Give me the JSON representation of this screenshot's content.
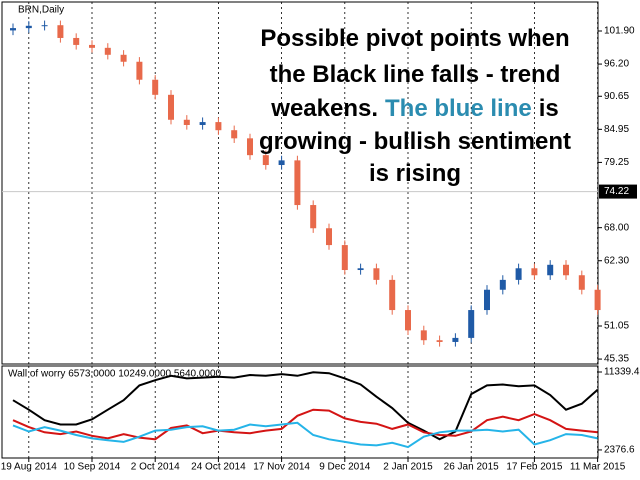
{
  "chart_data": [
    {
      "type": "candlestick",
      "title": "BRN,Daily",
      "categories": [
        null,
        "19 Aug 2014",
        null,
        null,
        null,
        "10 Sep 2014",
        null,
        null,
        null,
        "2 Oct 2014",
        null,
        null,
        null,
        "24 Oct 2014",
        null,
        null,
        null,
        "17 Nov 2014",
        null,
        null,
        null,
        "9 Dec 2014",
        null,
        null,
        null,
        "2 Jan 2015",
        null,
        null,
        null,
        "26 Jan 2015",
        null,
        null,
        null,
        "17 Feb 2015",
        null,
        null,
        null,
        "11 Mar 2015"
      ],
      "open": [
        102.0,
        102.4,
        102.8,
        102.9,
        100.7,
        99.5,
        99.0,
        97.8,
        96.6,
        93.5,
        90.9,
        86.6,
        85.7,
        86.2,
        84.8,
        83.4,
        80.5,
        78.8,
        79.6,
        71.9,
        67.9,
        65.0,
        60.7,
        61.0,
        59.0,
        53.8,
        50.3,
        48.6,
        48.3,
        49.0,
        53.8,
        57.3,
        59.0,
        61.0,
        59.8,
        61.6,
        59.8,
        57.3
      ],
      "high": [
        103.2,
        103.6,
        103.7,
        103.7,
        101.5,
        100.3,
        99.8,
        98.6,
        97.4,
        94.3,
        91.7,
        87.4,
        87.0,
        87.0,
        85.6,
        84.2,
        81.3,
        80.4,
        80.4,
        72.7,
        68.7,
        65.8,
        61.8,
        61.8,
        59.8,
        54.6,
        51.1,
        49.4,
        49.8,
        54.6,
        58.1,
        59.8,
        61.8,
        61.8,
        62.4,
        62.4,
        60.6,
        58.1
      ],
      "low": [
        101.2,
        101.6,
        102.0,
        99.9,
        98.7,
        98.2,
        97.0,
        95.8,
        92.7,
        90.1,
        85.8,
        84.9,
        84.9,
        84.0,
        82.6,
        79.7,
        78.0,
        78.0,
        71.1,
        67.1,
        64.2,
        59.9,
        59.9,
        58.2,
        53.0,
        49.5,
        47.8,
        47.5,
        47.5,
        48.2,
        53.0,
        56.5,
        58.2,
        59.0,
        59.0,
        59.0,
        56.5,
        53.0
      ],
      "close": [
        102.4,
        102.8,
        102.9,
        100.7,
        99.5,
        99.0,
        97.8,
        96.6,
        93.5,
        90.9,
        86.6,
        85.7,
        86.2,
        84.8,
        83.4,
        80.5,
        78.8,
        79.6,
        71.9,
        67.9,
        65.0,
        60.7,
        61.0,
        59.0,
        53.8,
        50.3,
        48.6,
        48.3,
        49.0,
        53.8,
        57.3,
        59.0,
        61.0,
        59.8,
        61.6,
        59.8,
        57.3,
        53.8
      ],
      "up_color": "#1f5aa6",
      "down_color": "#e8694a",
      "ylim": [
        44.5,
        106.9
      ],
      "yticks": [
        {
          "value": 101.9,
          "label": "101.90"
        },
        {
          "value": 96.2,
          "label": "96.20"
        },
        90.65,
        84.95,
        79.25,
        {
          "value": 68,
          "label": "68.00"
        },
        {
          "value": 62.3,
          "label": "62.30"
        },
        51.05,
        45.35
      ],
      "price_line": 74.22,
      "grid": true,
      "annotation": [
        [
          {
            "text": "Possible pivot points when",
            "color": "#000000"
          }
        ],
        [
          {
            "text": "the Black line falls - trend",
            "color": "#000000"
          }
        ],
        [
          {
            "text": "weakens.",
            "color": "#000000"
          },
          {
            "text": "The blue line",
            "color": "#2b8cb0"
          },
          {
            "text": "is",
            "color": "#000000"
          }
        ],
        [
          {
            "text": "growing - bullish sentiment",
            "color": "#000000"
          }
        ],
        [
          {
            "text": "is rising",
            "color": "#000000"
          }
        ]
      ]
    },
    {
      "type": "line",
      "title": "Wall of worry 6573.0000 10249.0000 5640.0000",
      "series": [
        {
          "color": "#000000",
          "values": [
            8100,
            7000,
            5800,
            5300,
            5300,
            5900,
            7000,
            8100,
            9800,
            10400,
            10900,
            10600,
            10700,
            10800,
            10700,
            11000,
            10900,
            11100,
            10900,
            11300,
            11200,
            10600,
            9900,
            8500,
            7200,
            5500,
            4600,
            3600,
            4500,
            8800,
            9800,
            9900,
            9700,
            9800,
            8700,
            7000,
            7700,
            9300
          ]
        },
        {
          "color": "#d41414",
          "values": [
            5800,
            5000,
            4400,
            4200,
            4500,
            4000,
            3700,
            4200,
            3800,
            3600,
            4900,
            5200,
            4300,
            4600,
            4400,
            4300,
            4600,
            4800,
            6300,
            7000,
            6900,
            6000,
            5600,
            5400,
            4800,
            5300,
            4400,
            4100,
            4000,
            4500,
            5800,
            6200,
            5800,
            6500,
            5800,
            4800,
            4600,
            4400
          ]
        },
        {
          "color": "#25b4e8",
          "values": [
            5200,
            4500,
            5000,
            4600,
            4100,
            3700,
            3500,
            3300,
            3900,
            4600,
            4700,
            5000,
            5100,
            4600,
            4700,
            5300,
            5100,
            5300,
            5500,
            4100,
            3600,
            3300,
            3000,
            2900,
            3200,
            2700,
            3900,
            4400,
            4600,
            4600,
            4700,
            4500,
            4700,
            3000,
            3500,
            4200,
            4100,
            3700
          ]
        }
      ],
      "ylim": [
        1450,
        12030
      ],
      "yticks": [
        2376.6,
        11339.4
      ]
    }
  ]
}
